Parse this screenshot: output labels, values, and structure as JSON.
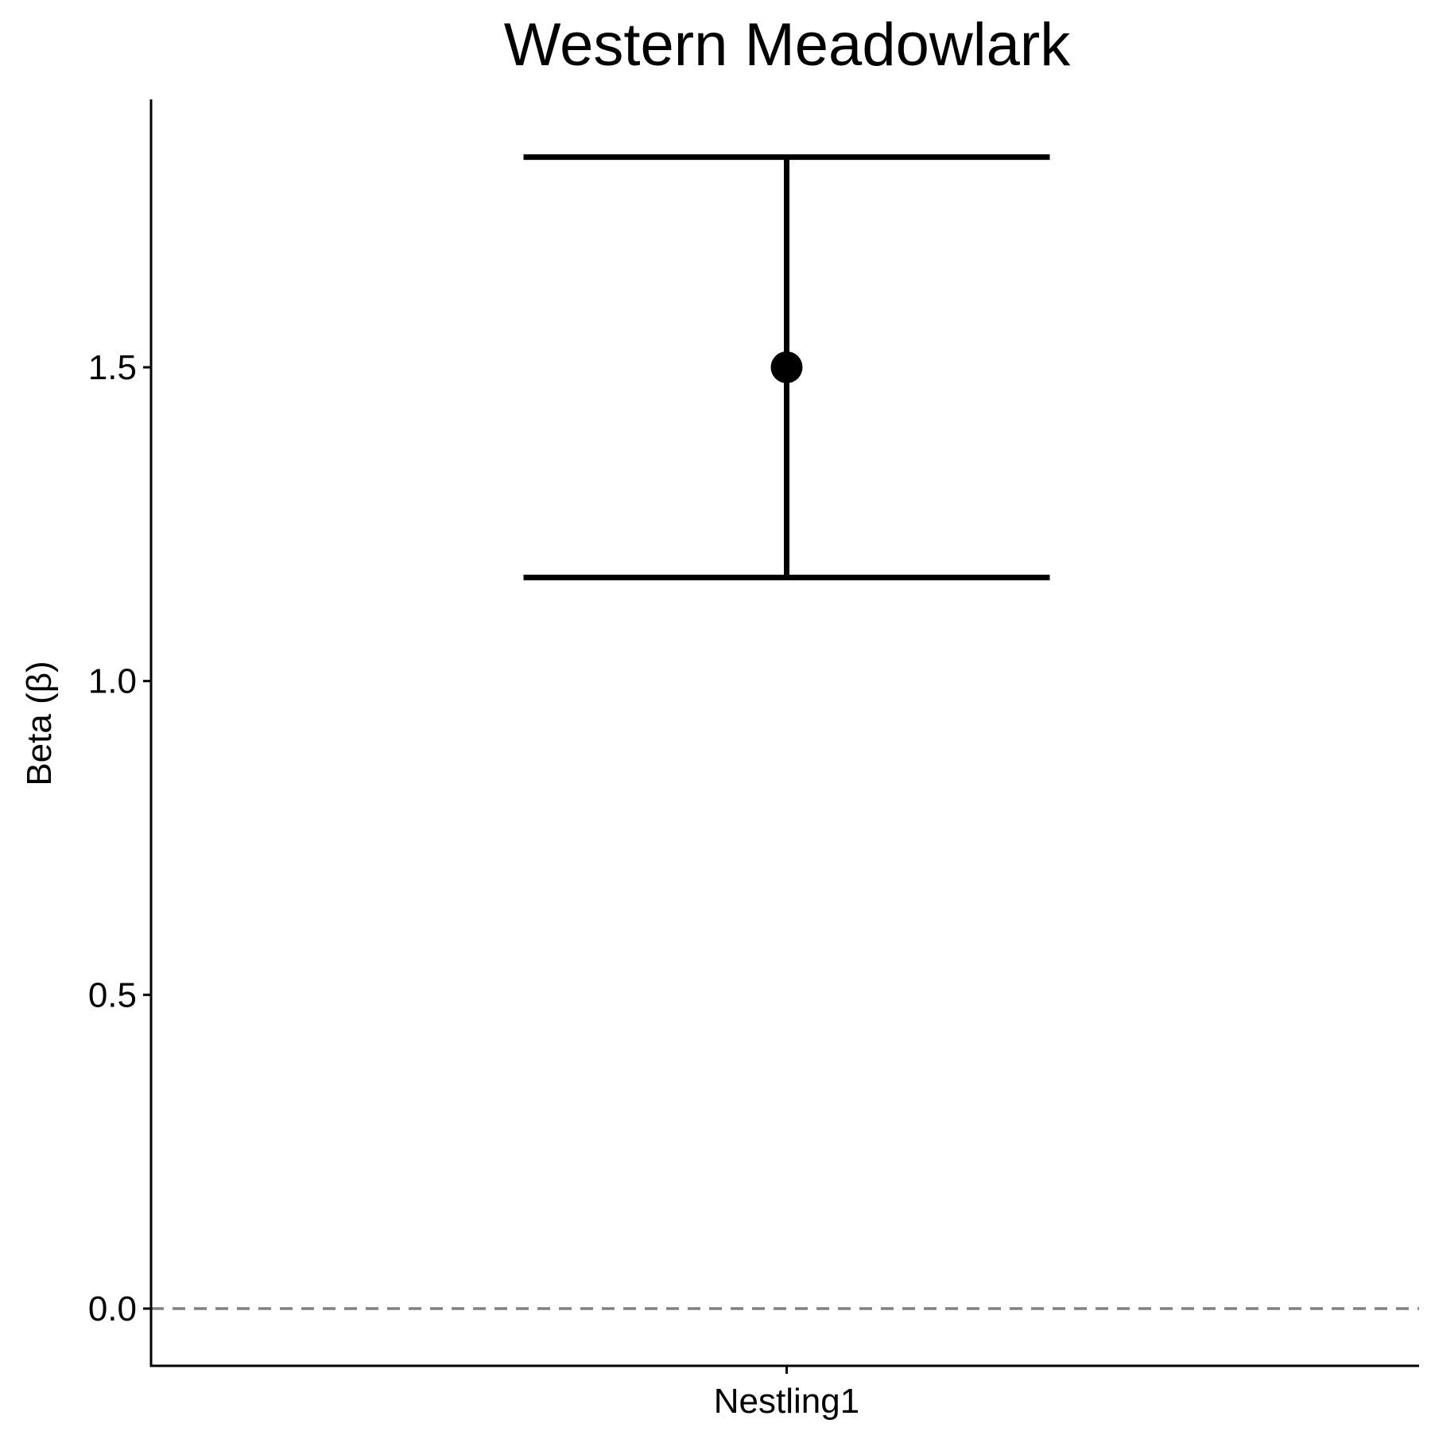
{
  "chart_data": {
    "type": "scatter",
    "title": "Western Meadowlark",
    "xlabel": "",
    "ylabel": "Beta (β)",
    "categories": [
      "Nestling1"
    ],
    "series": [
      {
        "values": [
          1.5
        ],
        "ci_lower": [
          1.165
        ],
        "ci_upper": [
          1.835
        ]
      }
    ],
    "ylim": [
      -0.09,
      1.925
    ],
    "yticks": [
      0.0,
      0.5,
      1.0,
      1.5
    ],
    "ytick_labels": [
      "0.0",
      "0.5",
      "1.0",
      "1.5"
    ],
    "reference_line": {
      "y": 0.0,
      "style": "dashed",
      "color": "#808080"
    },
    "grid": false,
    "legend": "none",
    "colors": {
      "points": "#000000",
      "errorbars": "#000000",
      "axes": "#000000"
    }
  }
}
